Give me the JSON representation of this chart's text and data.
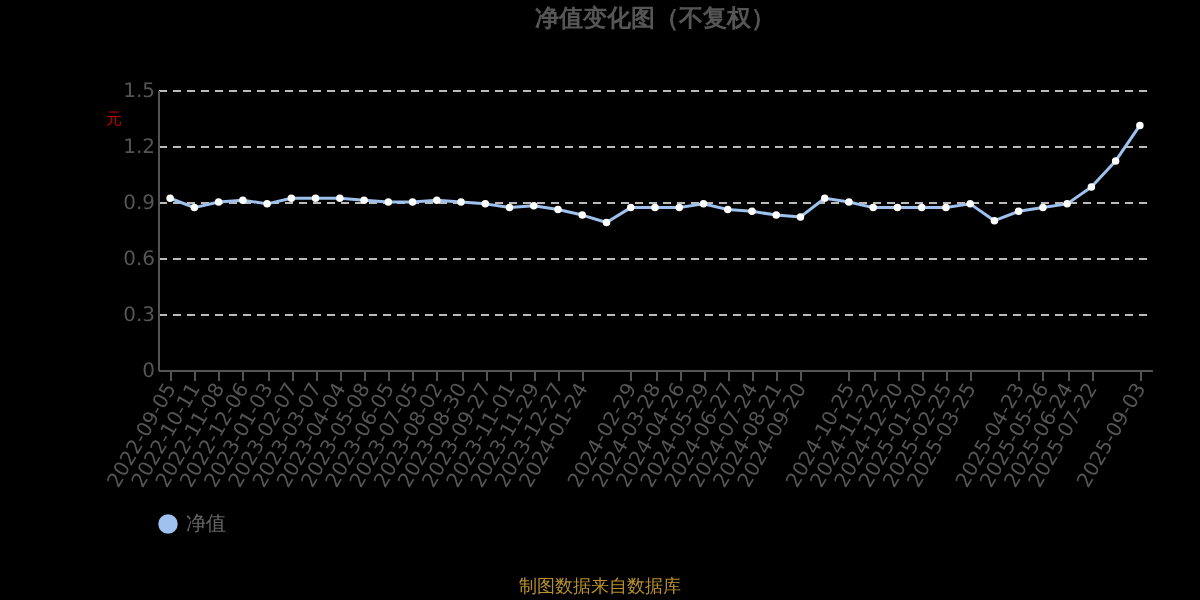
{
  "chart_data": {
    "type": "line",
    "title": "净值变化图（不复权）",
    "ylabel": "元",
    "categories": [
      "2022-09-05",
      "2022-10-11",
      "2022-11-08",
      "2022-12-06",
      "2023-01-03",
      "2023-02-07",
      "2023-03-07",
      "2023-04-04",
      "2023-05-08",
      "2023-06-05",
      "2023-07-05",
      "2023-08-02",
      "2023-08-30",
      "2023-09-27",
      "2023-11-01",
      "2023-11-29",
      "2023-12-27",
      "2024-01-24",
      null,
      "2024-02-29",
      "2024-03-28",
      "2024-04-26",
      "2024-05-29",
      "2024-06-27",
      "2024-07-24",
      "2024-08-21",
      "2024-09-20",
      null,
      "2024-10-25",
      "2024-11-22",
      "2024-12-20",
      "2025-01-20",
      "2025-02-25",
      "2025-03-25",
      null,
      "2025-04-23",
      "2025-05-26",
      "2025-06-24",
      "2025-07-22",
      null,
      "2025-09-03"
    ],
    "series": [
      {
        "name": "净值",
        "color": "#9ec1ee",
        "values": [
          0.92,
          0.87,
          0.9,
          0.91,
          0.89,
          0.92,
          0.92,
          0.92,
          0.91,
          0.9,
          0.9,
          0.91,
          0.9,
          0.89,
          0.87,
          0.88,
          0.86,
          0.83,
          0.79,
          0.87,
          0.87,
          0.87,
          0.89,
          0.86,
          0.85,
          0.83,
          0.82,
          0.92,
          0.9,
          0.87,
          0.87,
          0.87,
          0.87,
          0.89,
          0.8,
          0.85,
          0.87,
          0.89,
          0.98,
          1.12,
          1.31
        ]
      }
    ],
    "ylim": [
      0,
      1.5
    ],
    "yticks": [
      0,
      0.3,
      0.6,
      0.9,
      1.2,
      1.5
    ],
    "grid": "y",
    "legend": "bottom",
    "marker": "circle",
    "line_style": "solid",
    "annotations": [
      "制图数据来自数据库"
    ]
  }
}
